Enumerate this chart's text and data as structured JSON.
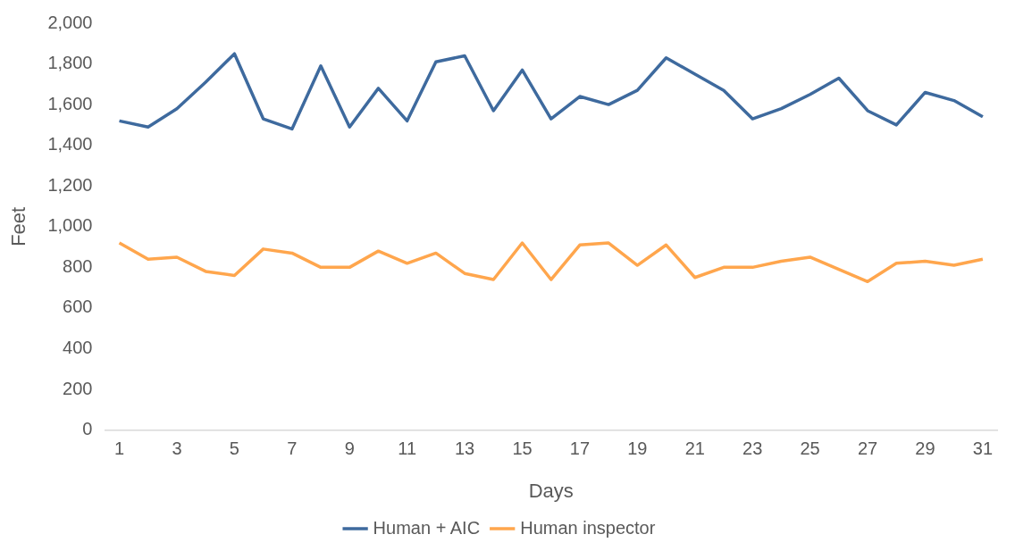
{
  "chart_data": {
    "type": "line",
    "xlabel": "Days",
    "ylabel": "Feet",
    "x": [
      1,
      2,
      3,
      4,
      5,
      6,
      7,
      8,
      9,
      10,
      11,
      12,
      13,
      14,
      15,
      16,
      17,
      18,
      19,
      20,
      21,
      22,
      23,
      24,
      25,
      26,
      27,
      28,
      29,
      30,
      31
    ],
    "xlim": [
      0.5,
      31.5
    ],
    "xticks": [
      1,
      3,
      5,
      7,
      9,
      11,
      13,
      15,
      17,
      19,
      21,
      23,
      25,
      27,
      29,
      31
    ],
    "series": [
      {
        "name": "Human + AIC",
        "color": "#3e6a9e",
        "values": [
          1520,
          1490,
          1580,
          1710,
          1850,
          1530,
          1480,
          1790,
          1490,
          1680,
          1520,
          1810,
          1840,
          1570,
          1770,
          1530,
          1640,
          1600,
          1670,
          1830,
          1750,
          1670,
          1530,
          1580,
          1650,
          1730,
          1570,
          1500,
          1660,
          1620,
          1540
        ]
      },
      {
        "name": "Human inspector",
        "color": "#ffa64d",
        "values": [
          920,
          840,
          850,
          780,
          760,
          890,
          870,
          800,
          800,
          880,
          820,
          870,
          770,
          740,
          920,
          740,
          910,
          920,
          810,
          910,
          750,
          800,
          800,
          830,
          850,
          790,
          730,
          820,
          830,
          810,
          840
        ]
      }
    ],
    "ylim": [
      0,
      2000
    ],
    "yticks": [
      0,
      200,
      400,
      600,
      800,
      {
        "value": 1000,
        "label": "1,000"
      },
      {
        "value": 1200,
        "label": "1,200"
      },
      {
        "value": 1400,
        "label": "1,400"
      },
      {
        "value": 1600,
        "label": "1,600"
      },
      {
        "value": 1800,
        "label": "1,800"
      },
      {
        "value": 2000,
        "label": "2,000"
      }
    ],
    "grid": false,
    "legend": "bottom",
    "marker": "none",
    "line_style": "solid"
  }
}
